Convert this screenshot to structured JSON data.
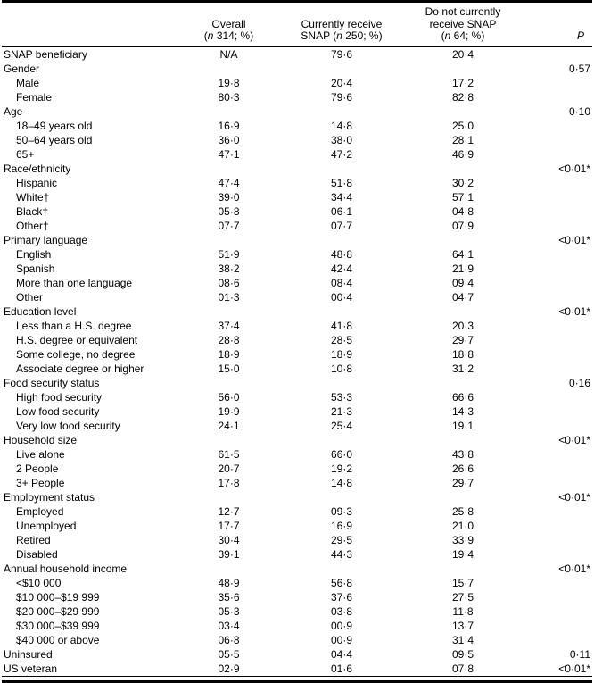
{
  "table": {
    "headers": {
      "label_col": "",
      "overall": {
        "line1": "Overall",
        "n": "n",
        "count": " 314; %"
      },
      "snap": {
        "line1": "Currently receive",
        "prefix": "SNAP ",
        "n": "n",
        "count": " 250; %"
      },
      "no_snap": {
        "line1": "Do not currently",
        "line2": "receive SNAP",
        "n": "n",
        "count": " 64; %"
      },
      "p": {
        "label": "P"
      }
    },
    "rows": [
      {
        "label": "SNAP beneficiary",
        "indent": false,
        "overall": "N/A",
        "snap": "79·6",
        "no_snap": "20·4",
        "p": ""
      },
      {
        "label": "Gender",
        "indent": false,
        "overall": "",
        "snap": "",
        "no_snap": "",
        "p": "0·57"
      },
      {
        "label": "Male",
        "indent": true,
        "overall": "19·8",
        "snap": "20·4",
        "no_snap": "17·2",
        "p": ""
      },
      {
        "label": "Female",
        "indent": true,
        "overall": "80·3",
        "snap": "79·6",
        "no_snap": "82·8",
        "p": ""
      },
      {
        "label": "Age",
        "indent": false,
        "overall": "",
        "snap": "",
        "no_snap": "",
        "p": "0·10"
      },
      {
        "label": "18–49 years old",
        "indent": true,
        "overall": "16·9",
        "snap": "14·8",
        "no_snap": "25·0",
        "p": ""
      },
      {
        "label": "50–64 years old",
        "indent": true,
        "overall": "36·0",
        "snap": "38·0",
        "no_snap": "28·1",
        "p": ""
      },
      {
        "label": "65+",
        "indent": true,
        "overall": "47·1",
        "snap": "47·2",
        "no_snap": "46·9",
        "p": ""
      },
      {
        "label": "Race/ethnicity",
        "indent": false,
        "overall": "",
        "snap": "",
        "no_snap": "",
        "p": "<0·01*"
      },
      {
        "label": "Hispanic",
        "indent": true,
        "overall": "47·4",
        "snap": "51·8",
        "no_snap": "30·2",
        "p": ""
      },
      {
        "label": "White†",
        "indent": true,
        "overall": "39·0",
        "snap": "34·4",
        "no_snap": "57·1",
        "p": ""
      },
      {
        "label": "Black†",
        "indent": true,
        "overall": "05·8",
        "snap": "06·1",
        "no_snap": "04·8",
        "p": ""
      },
      {
        "label": "Other†",
        "indent": true,
        "overall": "07·7",
        "snap": "07·7",
        "no_snap": "07·9",
        "p": ""
      },
      {
        "label": "Primary language",
        "indent": false,
        "overall": "",
        "snap": "",
        "no_snap": "",
        "p": "<0·01*"
      },
      {
        "label": "English",
        "indent": true,
        "overall": "51·9",
        "snap": "48·8",
        "no_snap": "64·1",
        "p": ""
      },
      {
        "label": "Spanish",
        "indent": true,
        "overall": "38·2",
        "snap": "42·4",
        "no_snap": "21·9",
        "p": ""
      },
      {
        "label": "More than one language",
        "indent": true,
        "overall": "08·6",
        "snap": "08·4",
        "no_snap": "09·4",
        "p": ""
      },
      {
        "label": "Other",
        "indent": true,
        "overall": "01·3",
        "snap": "00·4",
        "no_snap": "04·7",
        "p": ""
      },
      {
        "label": "Education level",
        "indent": false,
        "overall": "",
        "snap": "",
        "no_snap": "",
        "p": "<0·01*"
      },
      {
        "label": "Less than a H.S. degree",
        "indent": true,
        "overall": "37·4",
        "snap": "41·8",
        "no_snap": "20·3",
        "p": ""
      },
      {
        "label": "H.S. degree or equivalent",
        "indent": true,
        "overall": "28·8",
        "snap": "28·5",
        "no_snap": "29·7",
        "p": ""
      },
      {
        "label": "Some college, no degree",
        "indent": true,
        "overall": "18·9",
        "snap": "18·9",
        "no_snap": "18·8",
        "p": ""
      },
      {
        "label": "Associate degree or higher",
        "indent": true,
        "overall": "15·0",
        "snap": "10·8",
        "no_snap": "31·2",
        "p": ""
      },
      {
        "label": "Food security status",
        "indent": false,
        "overall": "",
        "snap": "",
        "no_snap": "",
        "p": "0·16"
      },
      {
        "label": "High food security",
        "indent": true,
        "overall": "56·0",
        "snap": "53·3",
        "no_snap": "66·6",
        "p": ""
      },
      {
        "label": "Low food security",
        "indent": true,
        "overall": "19·9",
        "snap": "21·3",
        "no_snap": "14·3",
        "p": ""
      },
      {
        "label": "Very low food security",
        "indent": true,
        "overall": "24·1",
        "snap": "25·4",
        "no_snap": "19·1",
        "p": ""
      },
      {
        "label": "Household size",
        "indent": false,
        "overall": "",
        "snap": "",
        "no_snap": "",
        "p": "<0·01*"
      },
      {
        "label": "Live alone",
        "indent": true,
        "overall": "61·5",
        "snap": "66·0",
        "no_snap": "43·8",
        "p": ""
      },
      {
        "label": "2 People",
        "indent": true,
        "overall": "20·7",
        "snap": "19·2",
        "no_snap": "26·6",
        "p": ""
      },
      {
        "label": "3+ People",
        "indent": true,
        "overall": "17·8",
        "snap": "14·8",
        "no_snap": "29·7",
        "p": ""
      },
      {
        "label": "Employment status",
        "indent": false,
        "overall": "",
        "snap": "",
        "no_snap": "",
        "p": "<0·01*"
      },
      {
        "label": "Employed",
        "indent": true,
        "overall": "12·7",
        "snap": "09·3",
        "no_snap": "25·8",
        "p": ""
      },
      {
        "label": "Unemployed",
        "indent": true,
        "overall": "17·7",
        "snap": "16·9",
        "no_snap": "21·0",
        "p": ""
      },
      {
        "label": "Retired",
        "indent": true,
        "overall": "30·4",
        "snap": "29·5",
        "no_snap": "33·9",
        "p": ""
      },
      {
        "label": "Disabled",
        "indent": true,
        "overall": "39·1",
        "snap": "44·3",
        "no_snap": "19·4",
        "p": ""
      },
      {
        "label": "Annual household income",
        "indent": false,
        "overall": "",
        "snap": "",
        "no_snap": "",
        "p": "<0·01*"
      },
      {
        "label": "<$10 000",
        "indent": true,
        "overall": "48·9",
        "snap": "56·8",
        "no_snap": "15·7",
        "p": ""
      },
      {
        "label": "$10 000–$19 999",
        "indent": true,
        "overall": "35·6",
        "snap": "37·6",
        "no_snap": "27·5",
        "p": ""
      },
      {
        "label": "$20 000–$29 999",
        "indent": true,
        "overall": "05·3",
        "snap": "03·8",
        "no_snap": "11·8",
        "p": ""
      },
      {
        "label": "$30 000–$39 999",
        "indent": true,
        "overall": "03·4",
        "snap": "00·9",
        "no_snap": "13·7",
        "p": ""
      },
      {
        "label": "$40 000 or above",
        "indent": true,
        "overall": "06·8",
        "snap": "00·9",
        "no_snap": "31·4",
        "p": ""
      },
      {
        "label": "Uninsured",
        "indent": false,
        "overall": "05·5",
        "snap": "04·4",
        "no_snap": "09·5",
        "p": "0·11"
      },
      {
        "label": "US veteran",
        "indent": false,
        "overall": "02·9",
        "snap": "01·6",
        "no_snap": "07·8",
        "p": "<0·01*"
      }
    ]
  }
}
